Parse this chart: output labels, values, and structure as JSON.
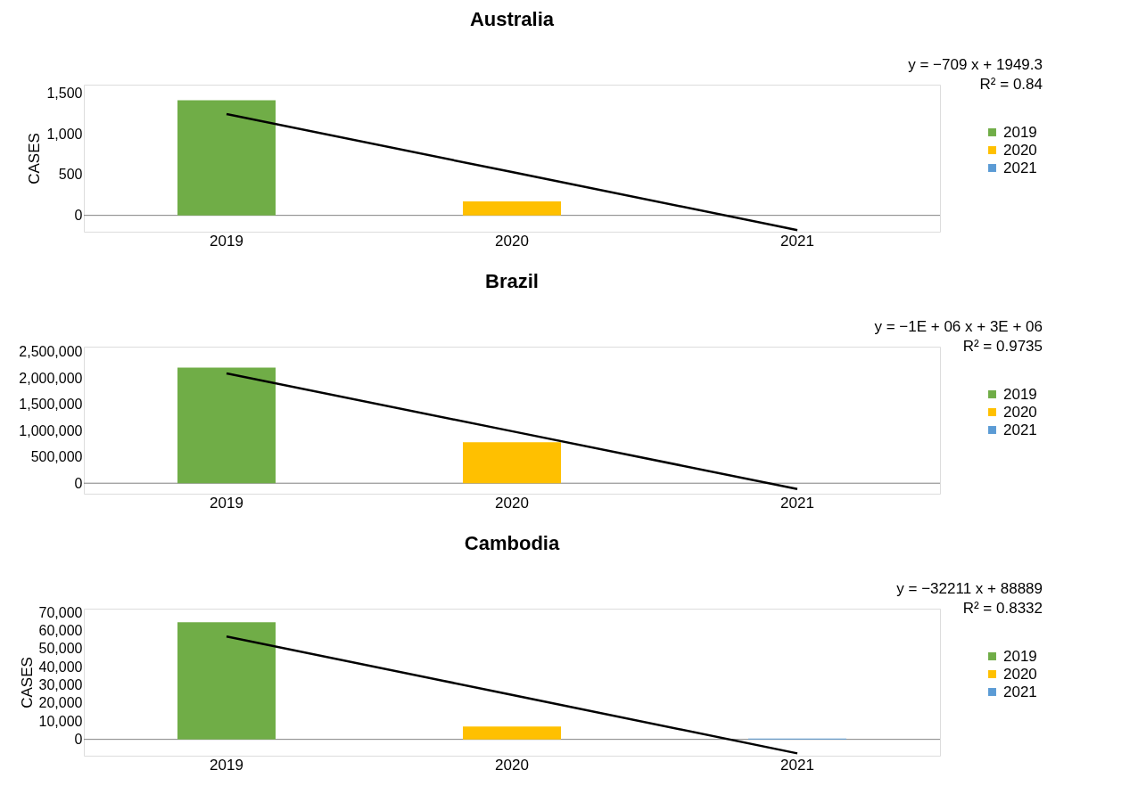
{
  "chart_data": [
    {
      "type": "bar",
      "title": "Australia",
      "ylabel": "CASES",
      "categories": [
        "2019",
        "2020",
        "2021"
      ],
      "ylim": [
        -200,
        1600
      ],
      "yticks": [
        0,
        500,
        {
          "value": 1000,
          "label": "1,000"
        },
        {
          "value": 1500,
          "label": "1,500"
        }
      ],
      "legend": "right",
      "annotations": [
        "y = −709 x + 1949.3",
        "R² = 0.84"
      ],
      "ref_lines": [
        {
          "axis": "y",
          "value": 0,
          "color": "#808080"
        }
      ],
      "series": [
        {
          "name": "2019",
          "color": "#70ad47",
          "values": [
            1410,
            null,
            null
          ]
        },
        {
          "name": "2020",
          "color": "#ffc000",
          "values": [
            null,
            170,
            null
          ]
        },
        {
          "name": "2021",
          "color": "#5b9bd5",
          "values": [
            null,
            null,
            0
          ]
        },
        {
          "type": "line",
          "color": "#000000",
          "values": [
            1240,
            530,
            -180
          ]
        }
      ]
    },
    {
      "type": "bar",
      "title": "Brazil",
      "categories": [
        "2019",
        "2020",
        "2021"
      ],
      "ylim": [
        -200000,
        2600000
      ],
      "yticks": [
        0,
        {
          "value": 500000,
          "label": "500,000"
        },
        {
          "value": 1000000,
          "label": "1,000,000"
        },
        {
          "value": 1500000,
          "label": "1,500,000"
        },
        {
          "value": 2000000,
          "label": "2,000,000"
        },
        {
          "value": 2500000,
          "label": "2,500,000"
        }
      ],
      "legend": "right",
      "annotations": [
        "y = −1E + 06 x + 3E + 06",
        "R² = 0.9735"
      ],
      "ref_lines": [
        {
          "axis": "y",
          "value": 0,
          "color": "#808080"
        }
      ],
      "series": [
        {
          "name": "2019",
          "color": "#70ad47",
          "values": [
            2200000,
            null,
            null
          ]
        },
        {
          "name": "2020",
          "color": "#ffc000",
          "values": [
            null,
            780000,
            null
          ]
        },
        {
          "name": "2021",
          "color": "#5b9bd5",
          "values": [
            null,
            null,
            0
          ]
        },
        {
          "type": "line",
          "color": "#000000",
          "values": [
            2090000,
            990000,
            -110000
          ]
        }
      ]
    },
    {
      "type": "bar",
      "title": "Cambodia",
      "ylabel": "CASES",
      "categories": [
        "2019",
        "2020",
        "2021"
      ],
      "ylim": [
        -9000,
        72000
      ],
      "yticks": [
        0,
        {
          "value": 10000,
          "label": "10,000"
        },
        {
          "value": 20000,
          "label": "20,000"
        },
        {
          "value": 30000,
          "label": "30,000"
        },
        {
          "value": 40000,
          "label": "40,000"
        },
        {
          "value": 50000,
          "label": "50,000"
        },
        {
          "value": 60000,
          "label": "60,000"
        },
        {
          "value": 70000,
          "label": "70,000"
        }
      ],
      "legend": "right",
      "annotations": [
        "y = −32211 x + 88889",
        "R² = 0.8332"
      ],
      "ref_lines": [
        {
          "axis": "y",
          "value": 0,
          "color": "#808080"
        }
      ],
      "series": [
        {
          "name": "2019",
          "color": "#70ad47",
          "values": [
            64500,
            null,
            null
          ]
        },
        {
          "name": "2020",
          "color": "#ffc000",
          "values": [
            null,
            7100,
            null
          ]
        },
        {
          "name": "2021",
          "color": "#5b9bd5",
          "values": [
            null,
            null,
            500
          ]
        },
        {
          "type": "line",
          "color": "#000000",
          "values": [
            56700,
            24500,
            -7700
          ]
        }
      ]
    }
  ]
}
